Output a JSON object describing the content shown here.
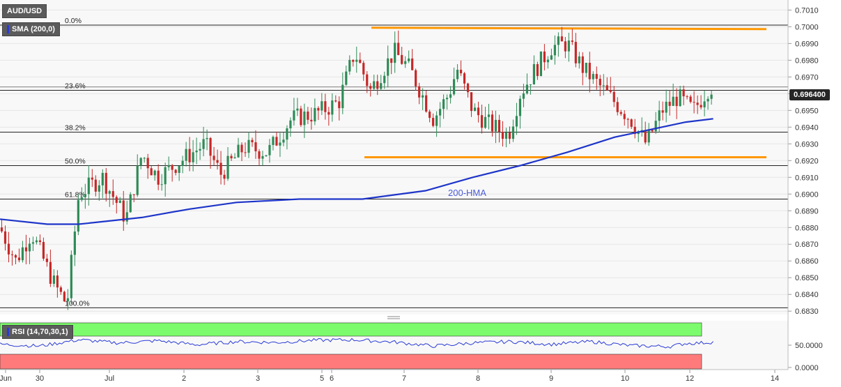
{
  "header": {
    "symbol": "AUD/USD",
    "indicator": "SMA (200,0)",
    "current_price": "0.696400"
  },
  "rsi_panel": {
    "label": "RSI (14,70,30,1)",
    "ticks": [
      "50.0000",
      "0.0000"
    ]
  },
  "colors": {
    "bull": "#2e8b57",
    "bear": "#c62828",
    "sma": "#1e35c9",
    "channel": "#ff9800",
    "rsi_line": "#2a3bd6",
    "overbought": "#7cfc6c",
    "oversold": "#ff7b7b"
  },
  "chart_data": {
    "type": "candlestick",
    "ylim": [
      0.6828,
      0.7016
    ],
    "y_ticks": [
      "0.7010",
      "0.7000",
      "0.6990",
      "0.6980",
      "0.6970",
      "0.6960",
      "0.6950",
      "0.6940",
      "0.6930",
      "0.6920",
      "0.6910",
      "0.6900",
      "0.6890",
      "0.6880",
      "0.6870",
      "0.6860",
      "0.6850",
      "0.6840",
      "0.6830"
    ],
    "x_ticks": [
      "Jun",
      "30",
      "Jul",
      "2",
      "3",
      "5",
      "6",
      "7",
      "8",
      "9",
      "10",
      "12",
      "14"
    ],
    "annotation": "200-HMA",
    "fib_levels": [
      {
        "label": "0.0%",
        "value": 0.7001
      },
      {
        "label": "23.6%",
        "value": 0.6962
      },
      {
        "label": "38.2%",
        "value": 0.6937
      },
      {
        "label": "50.0%",
        "value": 0.6917
      },
      {
        "label": "61.8%",
        "value": 0.6897
      },
      {
        "label": "100.0%",
        "value": 0.6832
      }
    ],
    "channel_top": 0.6999,
    "channel_bottom": 0.6922,
    "last_price": 0.6964,
    "sma_path": [
      [
        0,
        0.6885
      ],
      [
        0.06,
        0.6882
      ],
      [
        0.1,
        0.6882
      ],
      [
        0.18,
        0.6886
      ],
      [
        0.24,
        0.6891
      ],
      [
        0.3,
        0.6895
      ],
      [
        0.38,
        0.6897
      ],
      [
        0.46,
        0.6897
      ],
      [
        0.54,
        0.6902
      ],
      [
        0.6,
        0.691
      ],
      [
        0.66,
        0.6917
      ],
      [
        0.72,
        0.6925
      ],
      [
        0.78,
        0.6934
      ],
      [
        0.84,
        0.694
      ],
      [
        0.87,
        0.6943
      ],
      [
        0.905,
        0.6945
      ]
    ],
    "price_path": [
      [
        0,
        0.688
      ],
      [
        0.02,
        0.686
      ],
      [
        0.04,
        0.6877
      ],
      [
        0.07,
        0.6845
      ],
      [
        0.085,
        0.6834
      ],
      [
        0.1,
        0.69
      ],
      [
        0.13,
        0.691
      ],
      [
        0.16,
        0.6885
      ],
      [
        0.18,
        0.6924
      ],
      [
        0.2,
        0.691
      ],
      [
        0.23,
        0.692
      ],
      [
        0.26,
        0.693
      ],
      [
        0.28,
        0.6912
      ],
      [
        0.31,
        0.6928
      ],
      [
        0.34,
        0.6925
      ],
      [
        0.37,
        0.6945
      ],
      [
        0.4,
        0.6948
      ],
      [
        0.43,
        0.6955
      ],
      [
        0.45,
        0.6985
      ],
      [
        0.47,
        0.6962
      ],
      [
        0.5,
        0.6985
      ],
      [
        0.52,
        0.6975
      ],
      [
        0.55,
        0.6945
      ],
      [
        0.57,
        0.696
      ],
      [
        0.58,
        0.6975
      ],
      [
        0.6,
        0.695
      ],
      [
        0.62,
        0.6942
      ],
      [
        0.645,
        0.6935
      ],
      [
        0.66,
        0.696
      ],
      [
        0.68,
        0.6975
      ],
      [
        0.7,
        0.6988
      ],
      [
        0.72,
        0.699
      ],
      [
        0.74,
        0.6975
      ],
      [
        0.76,
        0.6965
      ],
      [
        0.78,
        0.6955
      ],
      [
        0.8,
        0.6945
      ],
      [
        0.82,
        0.693
      ],
      [
        0.84,
        0.695
      ],
      [
        0.86,
        0.6958
      ],
      [
        0.88,
        0.695
      ],
      [
        0.9,
        0.6964
      ]
    ],
    "rsi_path": [
      [
        0,
        52
      ],
      [
        0.05,
        48
      ],
      [
        0.1,
        62
      ],
      [
        0.15,
        55
      ],
      [
        0.2,
        60
      ],
      [
        0.25,
        51
      ],
      [
        0.3,
        58
      ],
      [
        0.35,
        56
      ],
      [
        0.4,
        61
      ],
      [
        0.45,
        62
      ],
      [
        0.5,
        57
      ],
      [
        0.55,
        48
      ],
      [
        0.6,
        55
      ],
      [
        0.65,
        58
      ],
      [
        0.7,
        52
      ],
      [
        0.75,
        58
      ],
      [
        0.8,
        49
      ],
      [
        0.85,
        47
      ],
      [
        0.87,
        54
      ],
      [
        0.89,
        55
      ],
      [
        0.905,
        57
      ]
    ]
  }
}
